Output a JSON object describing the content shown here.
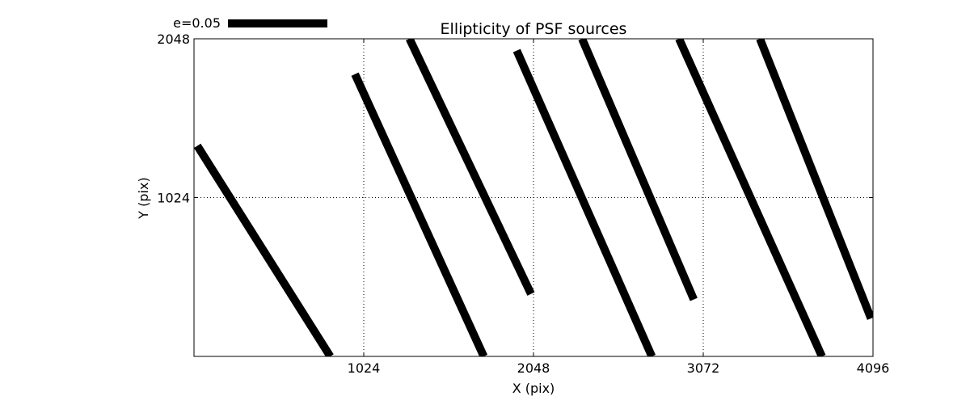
{
  "chart_data": {
    "type": "vector-field",
    "title": "Ellipticity of PSF sources",
    "xlabel": "X (pix)",
    "ylabel": "Y (pix)",
    "xlim": [
      0,
      4096
    ],
    "ylim": [
      0,
      2048
    ],
    "xticks": [
      1024,
      2048,
      3072,
      4096
    ],
    "xtick_labels": [
      "1024",
      "2048",
      "3072",
      "4096"
    ],
    "yticks": [
      1024,
      2048
    ],
    "ytick_labels": [
      "1024",
      "2048"
    ],
    "grid": true,
    "legend": {
      "label": "e=0.05",
      "position": "top-left outside"
    },
    "line_color": "#000000",
    "segments": [
      {
        "x1": 20,
        "y1": 1358,
        "x2": 822,
        "y2": 0
      },
      {
        "x1": 971,
        "y1": 1820,
        "x2": 1748,
        "y2": 0
      },
      {
        "x1": 1300,
        "y1": 2048,
        "x2": 2033,
        "y2": 403
      },
      {
        "x1": 1947,
        "y1": 1972,
        "x2": 2762,
        "y2": 0
      },
      {
        "x1": 2341,
        "y1": 2048,
        "x2": 3015,
        "y2": 367
      },
      {
        "x1": 2926,
        "y1": 2048,
        "x2": 3788,
        "y2": 0
      },
      {
        "x1": 3414,
        "y1": 2048,
        "x2": 4084,
        "y2": 245
      }
    ]
  }
}
